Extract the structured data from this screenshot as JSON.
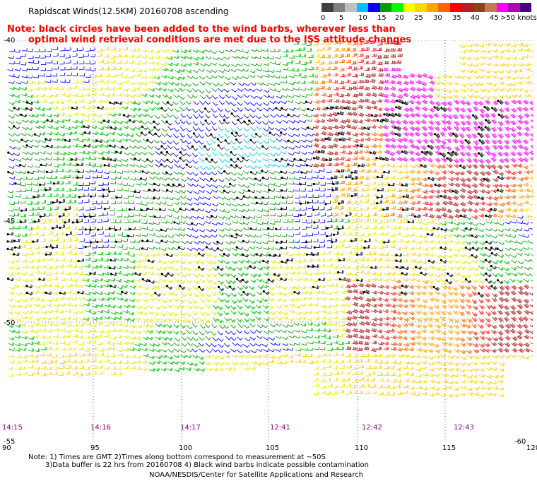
{
  "title": "Rapidscat Winds(12.5KM) 20160708 ascending",
  "note": {
    "line1": "Note: black circles have been added to the wind barbs, wherever less than",
    "line2": "optimal wind retrieval conditions are met due to the ISS attitude changes"
  },
  "color_scale": {
    "colors": [
      "#404040",
      "#808080",
      "#c0c0c0",
      "#00c0ff",
      "#0000ff",
      "#00a000",
      "#00ff00",
      "#ffff00",
      "#ffd700",
      "#ffa500",
      "#ff6600",
      "#ff0000",
      "#b22222",
      "#8b4513",
      "#c87850",
      "#ff00ff",
      "#b000b0",
      "#4b0082"
    ],
    "labels": [
      "0",
      "5",
      "10",
      "15",
      "20",
      "25",
      "30",
      "35",
      "40",
      "45",
      ">50 knots"
    ]
  },
  "chart_data": {
    "type": "map",
    "lat_labels": [
      "-40",
      "-45",
      "-50",
      "-55",
      "-60"
    ],
    "lon_labels": [
      "90",
      "95",
      "100",
      "105",
      "110",
      "115",
      "120"
    ],
    "time_labels": [
      "14:15",
      "14:16",
      "14:17",
      "12:41",
      "12:42",
      "12:43"
    ]
  },
  "footer": {
    "line1": "Note: 1) Times are GMT 2)Times along bottom correspond to measurement at ~50S",
    "line2": "3)Data buffer is 22 hrs from 20160708 4) Black wind barbs indicate possible contamination",
    "line3": "NOAA/NESDIS/Center for Satellite Applications and Research"
  }
}
